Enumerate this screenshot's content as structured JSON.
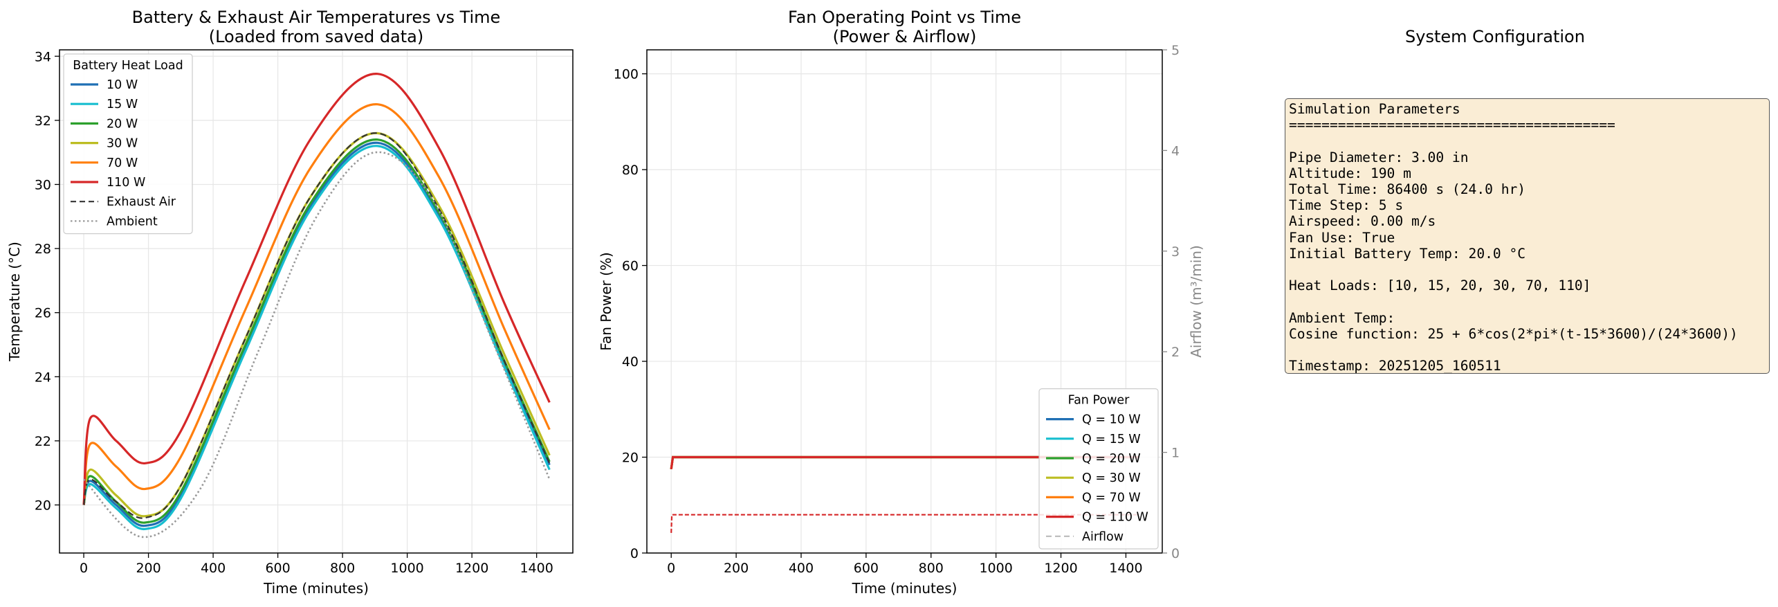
{
  "chart_data": [
    {
      "type": "line",
      "title": "Battery & Exhaust Air Temperatures vs Time\n(Loaded from saved data)",
      "xlabel": "Time (minutes)",
      "ylabel": "Temperature (°C)",
      "xlim": [
        -75,
        1512
      ],
      "ylim": [
        18.5,
        34.2
      ],
      "xticks": [
        0,
        200,
        400,
        600,
        800,
        1000,
        1200,
        1400
      ],
      "yticks": [
        20,
        22,
        24,
        26,
        28,
        30,
        32,
        34
      ],
      "grid": true,
      "legend": {
        "title": "Battery Heat Load",
        "placement": "upper left",
        "entries": [
          "10 W",
          "15 W",
          "20 W",
          "30 W",
          "70 W",
          "110 W",
          "Exhaust Air",
          "Ambient"
        ]
      },
      "series": [
        {
          "name": "10 W",
          "color": "#1f6fb4",
          "style": "solid",
          "x": [
            0,
            20,
            100,
            190,
            300,
            500,
            700,
            908,
            1100,
            1300,
            1440
          ],
          "y": [
            20.0,
            20.75,
            20.0,
            19.35,
            20.3,
            24.9,
            29.3,
            31.3,
            29.0,
            24.4,
            21.25
          ]
        },
        {
          "name": "15 W",
          "color": "#17becf",
          "style": "solid",
          "x": [
            0,
            20,
            100,
            190,
            300,
            500,
            700,
            908,
            1100,
            1300,
            1440
          ],
          "y": [
            20.0,
            20.65,
            19.9,
            19.25,
            20.2,
            24.8,
            29.2,
            31.2,
            28.9,
            24.3,
            21.1
          ]
        },
        {
          "name": "20 W",
          "color": "#2ca02c",
          "style": "solid",
          "x": [
            0,
            20,
            100,
            190,
            300,
            500,
            700,
            908,
            1100,
            1300,
            1440
          ],
          "y": [
            20.0,
            20.9,
            20.1,
            19.45,
            20.4,
            25.0,
            29.4,
            31.4,
            29.1,
            24.5,
            21.35
          ]
        },
        {
          "name": "30 W",
          "color": "#bcbd22",
          "style": "solid",
          "x": [
            0,
            20,
            100,
            190,
            300,
            500,
            700,
            908,
            1100,
            1300,
            1440
          ],
          "y": [
            20.0,
            21.1,
            20.3,
            19.65,
            20.6,
            25.2,
            29.6,
            31.6,
            29.3,
            24.7,
            21.55
          ]
        },
        {
          "name": "70 W",
          "color": "#ff7f0e",
          "style": "solid",
          "x": [
            0,
            20,
            100,
            190,
            300,
            500,
            700,
            908,
            1100,
            1300,
            1440
          ],
          "y": [
            20.0,
            21.9,
            21.2,
            20.5,
            21.5,
            26.1,
            30.5,
            32.5,
            30.2,
            25.5,
            22.35
          ]
        },
        {
          "name": "110 W",
          "color": "#d62728",
          "style": "solid",
          "x": [
            0,
            20,
            100,
            190,
            300,
            500,
            700,
            908,
            1100,
            1300,
            1440
          ],
          "y": [
            20.0,
            22.7,
            22.0,
            21.3,
            22.3,
            27.0,
            31.4,
            33.45,
            31.1,
            26.3,
            23.2
          ]
        },
        {
          "name": "Exhaust Air",
          "color": "#333333",
          "style": "dashed",
          "x": [
            0,
            20,
            100,
            190,
            300,
            500,
            700,
            908,
            1100,
            1300,
            1440
          ],
          "y": [
            20.0,
            20.8,
            20.1,
            19.6,
            20.6,
            25.2,
            29.6,
            31.6,
            29.2,
            24.5,
            21.3
          ]
        },
        {
          "name": "Ambient",
          "color": "#999999",
          "style": "dotted",
          "x": [
            0,
            180,
            360,
            540,
            720,
            900,
            1080,
            1260,
            1440
          ],
          "y": [
            20.8,
            19.0,
            20.5,
            24.8,
            29.0,
            31.0,
            29.5,
            25.2,
            20.8
          ]
        }
      ]
    },
    {
      "type": "line",
      "title": "Fan Operating Point vs Time\n(Power & Airflow)",
      "xlabel": "Time (minutes)",
      "ylabel": "Fan Power (%)",
      "y2label": "Airflow (m³/min)",
      "xlim": [
        -75,
        1512
      ],
      "ylim": [
        0,
        105
      ],
      "y2lim": [
        0,
        5
      ],
      "xticks": [
        0,
        200,
        400,
        600,
        800,
        1000,
        1200,
        1400
      ],
      "yticks": [
        0,
        20,
        40,
        60,
        80,
        100
      ],
      "y2ticks": [
        0,
        1,
        2,
        3,
        4,
        5
      ],
      "grid": true,
      "legend": {
        "title": "Fan Power",
        "placement": "lower right",
        "entries": [
          "Q = 10 W",
          "Q = 15 W",
          "Q = 20 W",
          "Q = 30 W",
          "Q = 70 W",
          "Q = 110 W",
          "Airflow"
        ]
      },
      "series": [
        {
          "name": "Q = 10 W",
          "color": "#1f6fb4",
          "axis": "power",
          "x": [
            0,
            5,
            1440
          ],
          "y": [
            17.5,
            20,
            20
          ]
        },
        {
          "name": "Q = 15 W",
          "color": "#17becf",
          "axis": "power",
          "x": [
            0,
            5,
            1440
          ],
          "y": [
            17.5,
            20,
            20
          ]
        },
        {
          "name": "Q = 20 W",
          "color": "#2ca02c",
          "axis": "power",
          "x": [
            0,
            5,
            1440
          ],
          "y": [
            17.5,
            20,
            20
          ]
        },
        {
          "name": "Q = 30 W",
          "color": "#bcbd22",
          "axis": "power",
          "x": [
            0,
            5,
            1440
          ],
          "y": [
            17.5,
            20,
            20
          ]
        },
        {
          "name": "Q = 70 W",
          "color": "#ff7f0e",
          "axis": "power",
          "x": [
            0,
            5,
            1440
          ],
          "y": [
            17.5,
            20,
            20
          ]
        },
        {
          "name": "Q = 110 W",
          "color": "#d62728",
          "axis": "power",
          "x": [
            0,
            5,
            1440
          ],
          "y": [
            17.5,
            20,
            20
          ]
        },
        {
          "name": "Airflow",
          "color": "#d62728",
          "axis": "airflow",
          "style": "dashed",
          "x": [
            0,
            2,
            1440
          ],
          "y": [
            0.2,
            0.38,
            0.38
          ]
        }
      ]
    }
  ],
  "config": {
    "title": "System Configuration",
    "lines": [
      "Simulation Parameters",
      "========================================",
      "",
      "Pipe Diameter: 3.00 in",
      "Altitude: 190 m",
      "Total Time: 86400 s (24.0 hr)",
      "Time Step: 5 s",
      "Airspeed: 0.00 m/s",
      "Fan Use: True",
      "Initial Battery Temp: 20.0 °C",
      "",
      "Heat Loads: [10, 15, 20, 30, 70, 110]",
      "",
      "Ambient Temp:",
      "Cosine function: 25 + 6*cos(2*pi*(t-15*3600)/(24*3600))",
      "",
      "Timestamp: 20251205_160511"
    ]
  }
}
